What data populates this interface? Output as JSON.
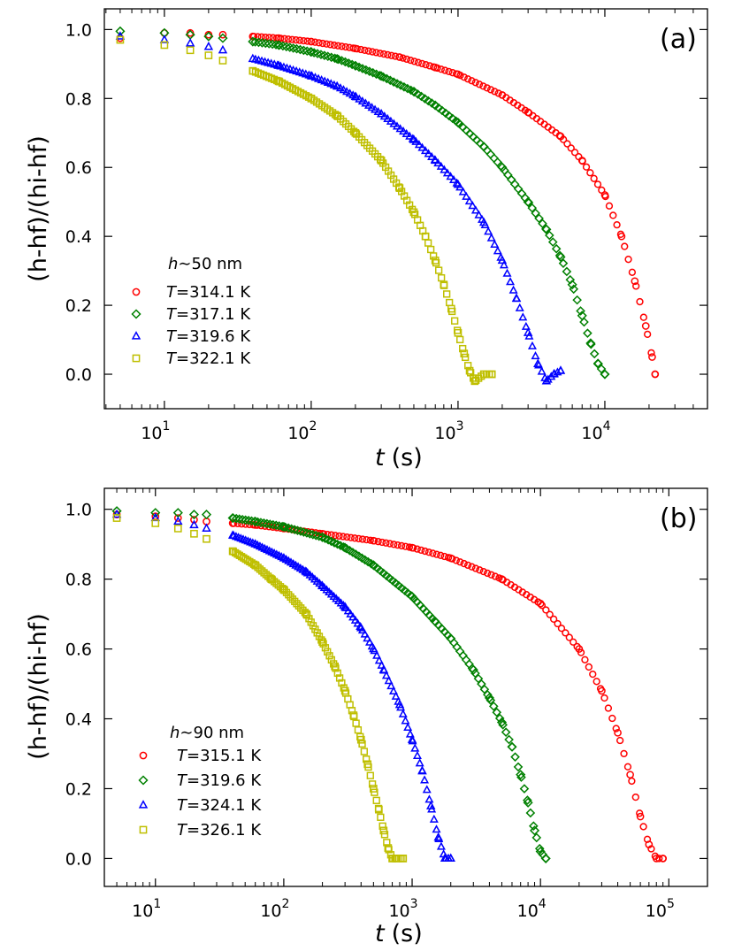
{
  "chart_data": [
    {
      "type": "scatter",
      "panel_label": "(a)",
      "xscale": "log",
      "xlabel_var": "t",
      "xlabel_unit": "(s)",
      "ylabel": "(h-hf)/(hi-hf)",
      "xlim": [
        3.9,
        50000
      ],
      "ylim": [
        -0.1,
        1.06
      ],
      "xticks": [
        10,
        100,
        1000,
        10000
      ],
      "xtick_labels": [
        "10",
        "10",
        "10",
        "10"
      ],
      "xtick_exponents": [
        "1",
        "2",
        "3",
        "4"
      ],
      "yticks": [
        0.0,
        0.2,
        0.4,
        0.6,
        0.8,
        1.0
      ],
      "ytick_labels": [
        "0.0",
        "0.2",
        "0.4",
        "0.6",
        "0.8",
        "1.0"
      ],
      "legend_title": "h ~ 50 nm",
      "legend_title_var": "h",
      "legend_title_rest": "∼50 nm",
      "legend_position": "lower-left",
      "series": [
        {
          "name": "T=314.1 K",
          "var": "T",
          "value": "=314.1 K",
          "marker": "circle",
          "color": "#ff0000",
          "t_points": [
            5,
            10,
            15,
            20,
            25,
            40,
            60,
            100,
            200,
            400,
            700,
            1000,
            2000,
            3000,
            5000,
            7000,
            10000,
            13000,
            16000,
            19000,
            21000,
            22000
          ],
          "y_points": [
            0.975,
            0.99,
            0.99,
            0.985,
            0.985,
            0.98,
            0.975,
            0.965,
            0.945,
            0.92,
            0.89,
            0.87,
            0.81,
            0.76,
            0.69,
            0.62,
            0.52,
            0.4,
            0.27,
            0.14,
            0.05,
            0.0
          ]
        },
        {
          "name": "T=317.1 K",
          "var": "T",
          "value": "=317.1 K",
          "marker": "diamond",
          "color": "#008000",
          "t_points": [
            5,
            10,
            15,
            20,
            25,
            40,
            60,
            100,
            150,
            200,
            300,
            500,
            700,
            1000,
            1500,
            2000,
            3000,
            4000,
            5000,
            6000,
            7000,
            8000,
            9000,
            10000
          ],
          "y_points": [
            0.995,
            0.99,
            0.985,
            0.98,
            0.975,
            0.965,
            0.955,
            0.935,
            0.915,
            0.895,
            0.865,
            0.82,
            0.78,
            0.73,
            0.66,
            0.6,
            0.5,
            0.42,
            0.34,
            0.26,
            0.17,
            0.09,
            0.03,
            0.0
          ]
        },
        {
          "name": "T=319.6 K",
          "var": "T",
          "value": "=319.6 K",
          "marker": "triangle",
          "color": "#0000ff",
          "t_points": [
            5,
            10,
            15,
            20,
            25,
            40,
            60,
            100,
            150,
            200,
            300,
            500,
            700,
            1000,
            1500,
            2000,
            2500,
            3000,
            3500,
            4000,
            4500,
            5000
          ],
          "y_points": [
            0.98,
            0.97,
            0.96,
            0.95,
            0.94,
            0.915,
            0.895,
            0.865,
            0.835,
            0.805,
            0.755,
            0.68,
            0.62,
            0.55,
            0.44,
            0.33,
            0.22,
            0.12,
            0.03,
            -0.02,
            0.0,
            0.01
          ]
        },
        {
          "name": "T=322.1 K",
          "var": "T",
          "value": "=322.1 K",
          "marker": "square",
          "color": "#bfbf00",
          "t_points": [
            5,
            10,
            15,
            20,
            25,
            40,
            60,
            100,
            150,
            200,
            300,
            400,
            500,
            600,
            700,
            800,
            900,
            1000,
            1100,
            1200,
            1300,
            1500,
            1700
          ],
          "y_points": [
            0.97,
            0.955,
            0.94,
            0.925,
            0.91,
            0.88,
            0.85,
            0.8,
            0.75,
            0.7,
            0.62,
            0.54,
            0.47,
            0.4,
            0.33,
            0.26,
            0.19,
            0.12,
            0.06,
            0.01,
            -0.02,
            0.0,
            0.0
          ]
        }
      ]
    },
    {
      "type": "scatter",
      "panel_label": "(b)",
      "xscale": "log",
      "xlabel_var": "t",
      "xlabel_unit": "(s)",
      "ylabel": "(h-hf)/(hi-hf)",
      "xlim": [
        4,
        200000
      ],
      "ylim": [
        -0.08,
        1.06
      ],
      "xticks": [
        10,
        100,
        1000,
        10000,
        100000
      ],
      "xtick_labels": [
        "10",
        "10",
        "10",
        "10",
        "10"
      ],
      "xtick_exponents": [
        "1",
        "2",
        "3",
        "4",
        "5"
      ],
      "yticks": [
        0.0,
        0.2,
        0.4,
        0.6,
        0.8,
        1.0
      ],
      "ytick_labels": [
        "0.0",
        "0.2",
        "0.4",
        "0.6",
        "0.8",
        "1.0"
      ],
      "legend_title": "h ~ 90 nm",
      "legend_title_var": "h",
      "legend_title_rest": "∼90 nm",
      "legend_position": "lower-left",
      "series": [
        {
          "name": "T=315.1 K",
          "var": "T",
          "value": "=315.1 K",
          "marker": "circle",
          "color": "#ff0000",
          "t_points": [
            5,
            10,
            15,
            20,
            25,
            40,
            60,
            100,
            200,
            500,
            1000,
            2000,
            5000,
            10000,
            20000,
            30000,
            40000,
            50000,
            60000,
            70000,
            80000,
            90000
          ],
          "y_points": [
            0.985,
            0.98,
            0.975,
            0.97,
            0.965,
            0.96,
            0.955,
            0.945,
            0.93,
            0.91,
            0.89,
            0.86,
            0.8,
            0.73,
            0.6,
            0.48,
            0.36,
            0.24,
            0.12,
            0.04,
            0.0,
            0.0
          ]
        },
        {
          "name": "T=319.6 K",
          "var": "T",
          "value": "=319.6 K",
          "marker": "diamond",
          "color": "#008000",
          "t_points": [
            5,
            10,
            15,
            20,
            25,
            40,
            60,
            100,
            200,
            300,
            500,
            1000,
            1500,
            2000,
            3000,
            4000,
            5000,
            6000,
            7000,
            8000,
            9000,
            10000,
            11000
          ],
          "y_points": [
            0.995,
            0.99,
            0.99,
            0.985,
            0.985,
            0.975,
            0.965,
            0.95,
            0.92,
            0.89,
            0.84,
            0.75,
            0.68,
            0.63,
            0.54,
            0.46,
            0.39,
            0.32,
            0.24,
            0.16,
            0.08,
            0.02,
            0.0
          ]
        },
        {
          "name": "T=324.1 K",
          "var": "T",
          "value": "=324.1 K",
          "marker": "triangle",
          "color": "#0000ff",
          "t_points": [
            5,
            10,
            15,
            20,
            25,
            40,
            60,
            100,
            150,
            200,
            300,
            400,
            500,
            600,
            800,
            1000,
            1200,
            1400,
            1600,
            1800,
            2000
          ],
          "y_points": [
            0.985,
            0.975,
            0.965,
            0.955,
            0.945,
            0.925,
            0.9,
            0.86,
            0.82,
            0.78,
            0.72,
            0.66,
            0.6,
            0.54,
            0.44,
            0.34,
            0.25,
            0.15,
            0.06,
            0.0,
            0.0
          ]
        },
        {
          "name": "T=326.1 K",
          "var": "T",
          "value": "=326.1 K",
          "marker": "square",
          "color": "#bfbf00",
          "t_points": [
            5,
            10,
            15,
            20,
            25,
            40,
            60,
            80,
            100,
            150,
            200,
            250,
            300,
            350,
            400,
            450,
            500,
            550,
            600,
            650,
            700,
            750,
            850
          ],
          "y_points": [
            0.975,
            0.96,
            0.945,
            0.93,
            0.915,
            0.88,
            0.84,
            0.8,
            0.77,
            0.7,
            0.62,
            0.55,
            0.48,
            0.41,
            0.34,
            0.27,
            0.2,
            0.14,
            0.08,
            0.03,
            0.0,
            0.0,
            0.0
          ]
        }
      ]
    }
  ]
}
